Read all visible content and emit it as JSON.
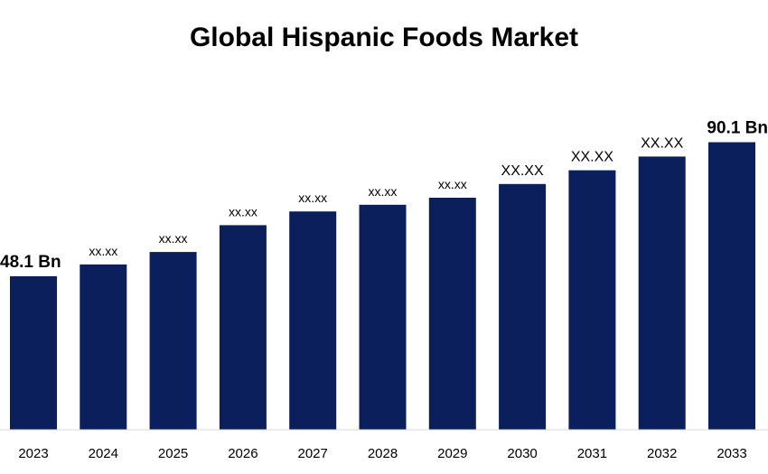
{
  "chart_data": {
    "type": "bar",
    "title": "Global Hispanic Foods Market",
    "xlabel": "",
    "ylabel": "",
    "categories": [
      "2023",
      "2024",
      "2025",
      "2026",
      "2027",
      "2028",
      "2029",
      "2030",
      "2031",
      "2032",
      "2033"
    ],
    "values": [
      48.1,
      51.8,
      55.7,
      64.1,
      68.4,
      70.5,
      72.7,
      77.0,
      81.3,
      85.6,
      90.1
    ],
    "data_labels": [
      "48.1 Bn",
      "xx.xx",
      "xx.xx",
      "xx.xx",
      "xx.xx",
      "xx.xx",
      "xx.xx",
      "XX.XX",
      "XX.XX",
      "XX.XX",
      "90.1 Bn"
    ],
    "ylim": [
      0,
      95
    ],
    "grid": false,
    "legend": "none",
    "bar_color": "#0b1f5c"
  }
}
